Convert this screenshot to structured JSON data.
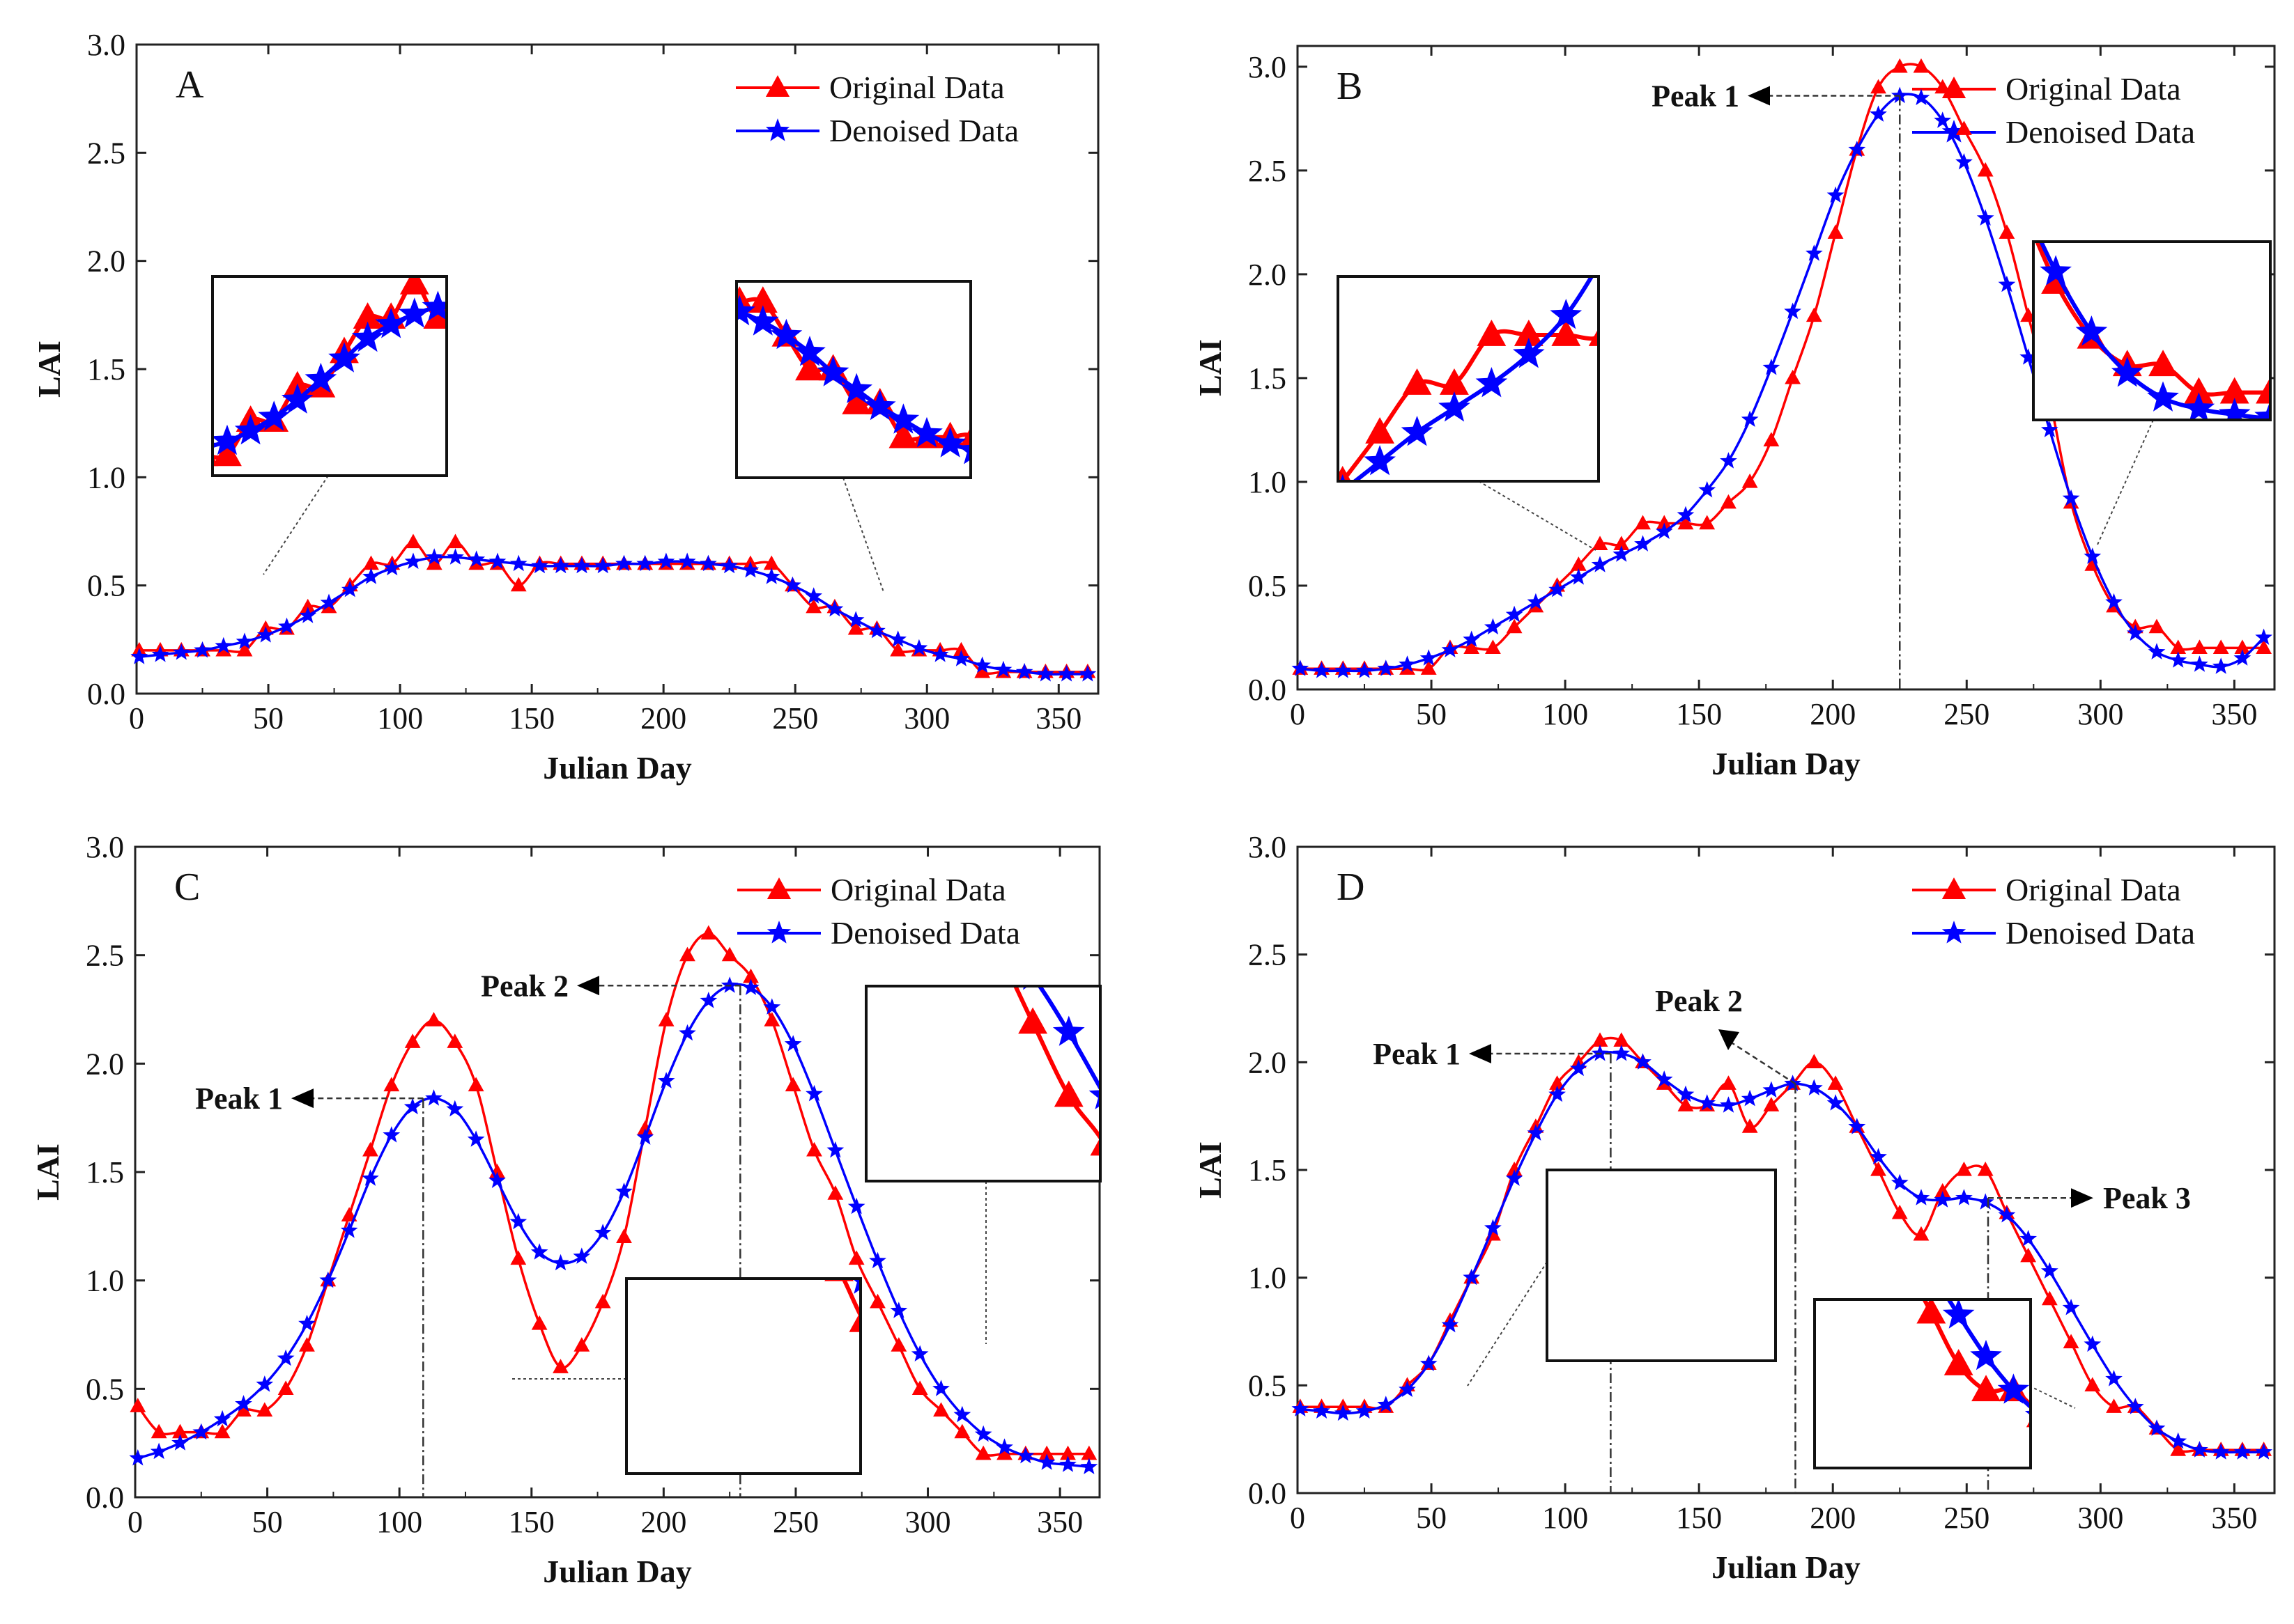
{
  "chart_data": [
    {
      "type": "line",
      "panel": "A",
      "xlabel": "Julian Day",
      "ylabel": "LAI",
      "xlim": [
        0,
        365
      ],
      "ylim": [
        0,
        3.0
      ],
      "xticks": [
        "0",
        "50",
        "100",
        "150",
        "200",
        "250",
        "300",
        "350"
      ],
      "yticks": [
        "0.0",
        "0.5",
        "1.0",
        "1.5",
        "2.0",
        "2.5",
        "3.0"
      ],
      "legend": [
        "Original Data",
        "Denoised Data"
      ],
      "x": [
        1,
        9,
        17,
        25,
        33,
        41,
        49,
        57,
        65,
        73,
        81,
        89,
        97,
        105,
        113,
        121,
        129,
        137,
        145,
        153,
        161,
        169,
        177,
        185,
        193,
        201,
        209,
        217,
        225,
        233,
        241,
        249,
        257,
        265,
        273,
        281,
        289,
        297,
        305,
        313,
        321,
        329,
        337,
        345,
        353,
        361
      ],
      "series": [
        {
          "name": "Original Data",
          "color": "#ff0000",
          "marker": "triangle",
          "values": [
            0.2,
            0.2,
            0.2,
            0.2,
            0.2,
            0.2,
            0.3,
            0.3,
            0.4,
            0.4,
            0.5,
            0.6,
            0.6,
            0.7,
            0.6,
            0.7,
            0.6,
            0.6,
            0.5,
            0.6,
            0.6,
            0.6,
            0.6,
            0.6,
            0.6,
            0.6,
            0.6,
            0.6,
            0.6,
            0.6,
            0.6,
            0.5,
            0.4,
            0.4,
            0.3,
            0.3,
            0.2,
            0.2,
            0.2,
            0.2,
            0.1,
            0.1,
            0.1,
            0.1,
            0.1,
            0.1
          ]
        },
        {
          "name": "Denoised Data",
          "color": "#0000ff",
          "marker": "star",
          "values": [
            0.17,
            0.18,
            0.19,
            0.2,
            0.22,
            0.24,
            0.27,
            0.31,
            0.36,
            0.42,
            0.48,
            0.54,
            0.58,
            0.61,
            0.63,
            0.63,
            0.62,
            0.61,
            0.6,
            0.59,
            0.59,
            0.59,
            0.59,
            0.6,
            0.6,
            0.61,
            0.61,
            0.6,
            0.59,
            0.57,
            0.54,
            0.5,
            0.45,
            0.39,
            0.34,
            0.29,
            0.25,
            0.21,
            0.18,
            0.16,
            0.13,
            0.11,
            0.1,
            0.09,
            0.09,
            0.09
          ]
        }
      ],
      "annotations": []
    },
    {
      "type": "line",
      "panel": "B",
      "xlabel": "Julian Day",
      "ylabel": "LAI",
      "xlim": [
        0,
        365
      ],
      "ylim": [
        0,
        3.1
      ],
      "xticks": [
        "0",
        "50",
        "100",
        "150",
        "200",
        "250",
        "300",
        "350"
      ],
      "yticks": [
        "0.0",
        "0.5",
        "1.0",
        "1.5",
        "2.0",
        "2.5",
        "3.0"
      ],
      "legend": [
        "Original Data",
        "Denoised Data"
      ],
      "x": [
        1,
        9,
        17,
        25,
        33,
        41,
        49,
        57,
        65,
        73,
        81,
        89,
        97,
        105,
        113,
        121,
        129,
        137,
        145,
        153,
        161,
        169,
        177,
        185,
        193,
        201,
        209,
        217,
        225,
        233,
        241,
        249,
        257,
        265,
        273,
        281,
        289,
        297,
        305,
        313,
        321,
        329,
        337,
        345,
        353,
        361
      ],
      "series": [
        {
          "name": "Original Data",
          "color": "#ff0000",
          "marker": "triangle",
          "values": [
            0.1,
            0.1,
            0.1,
            0.1,
            0.1,
            0.1,
            0.1,
            0.2,
            0.2,
            0.2,
            0.3,
            0.4,
            0.5,
            0.6,
            0.7,
            0.7,
            0.8,
            0.8,
            0.8,
            0.8,
            0.9,
            1.0,
            1.2,
            1.5,
            1.8,
            2.2,
            2.6,
            2.9,
            3.0,
            3.0,
            2.9,
            2.7,
            2.5,
            2.2,
            1.8,
            1.4,
            0.9,
            0.6,
            0.4,
            0.3,
            0.3,
            0.2,
            0.2,
            0.2,
            0.2,
            0.2
          ]
        },
        {
          "name": "Denoised Data",
          "color": "#0000ff",
          "marker": "star",
          "values": [
            0.1,
            0.09,
            0.09,
            0.09,
            0.1,
            0.12,
            0.15,
            0.19,
            0.24,
            0.3,
            0.36,
            0.42,
            0.48,
            0.54,
            0.6,
            0.65,
            0.7,
            0.76,
            0.84,
            0.96,
            1.1,
            1.3,
            1.55,
            1.82,
            2.1,
            2.38,
            2.6,
            2.77,
            2.86,
            2.85,
            2.74,
            2.54,
            2.27,
            1.95,
            1.6,
            1.25,
            0.92,
            0.64,
            0.42,
            0.27,
            0.18,
            0.14,
            0.12,
            0.11,
            0.15,
            0.25
          ]
        }
      ],
      "annotations": [
        {
          "text": "Peak 1",
          "x": 225,
          "y": 2.86
        }
      ]
    },
    {
      "type": "line",
      "panel": "C",
      "xlabel": "Julian Day",
      "ylabel": "LAI",
      "xlim": [
        0,
        365
      ],
      "ylim": [
        0,
        3.0
      ],
      "xticks": [
        "0",
        "50",
        "100",
        "150",
        "200",
        "250",
        "300",
        "350"
      ],
      "yticks": [
        "0.0",
        "0.5",
        "1.0",
        "1.5",
        "2.0",
        "2.5",
        "3.0"
      ],
      "legend": [
        "Original Data",
        "Denoised Data"
      ],
      "x": [
        1,
        9,
        17,
        25,
        33,
        41,
        49,
        57,
        65,
        73,
        81,
        89,
        97,
        105,
        113,
        121,
        129,
        137,
        145,
        153,
        161,
        169,
        177,
        185,
        193,
        201,
        209,
        217,
        225,
        233,
        241,
        249,
        257,
        265,
        273,
        281,
        289,
        297,
        305,
        313,
        321,
        329,
        337,
        345,
        353,
        361
      ],
      "series": [
        {
          "name": "Original Data",
          "color": "#ff0000",
          "marker": "triangle",
          "values": [
            0.42,
            0.3,
            0.3,
            0.3,
            0.3,
            0.4,
            0.4,
            0.5,
            0.7,
            1.0,
            1.3,
            1.6,
            1.9,
            2.1,
            2.2,
            2.1,
            1.9,
            1.5,
            1.1,
            0.8,
            0.6,
            0.7,
            0.9,
            1.2,
            1.7,
            2.2,
            2.5,
            2.6,
            2.5,
            2.4,
            2.2,
            1.9,
            1.6,
            1.4,
            1.1,
            0.9,
            0.7,
            0.5,
            0.4,
            0.3,
            0.2,
            0.2,
            0.2,
            0.2,
            0.2,
            0.2
          ]
        },
        {
          "name": "Denoised Data",
          "color": "#0000ff",
          "marker": "star",
          "values": [
            0.18,
            0.21,
            0.25,
            0.3,
            0.36,
            0.43,
            0.52,
            0.64,
            0.8,
            1.0,
            1.23,
            1.47,
            1.67,
            1.8,
            1.84,
            1.79,
            1.65,
            1.46,
            1.27,
            1.13,
            1.08,
            1.11,
            1.22,
            1.41,
            1.66,
            1.92,
            2.14,
            2.29,
            2.36,
            2.35,
            2.26,
            2.09,
            1.86,
            1.6,
            1.34,
            1.09,
            0.86,
            0.66,
            0.5,
            0.38,
            0.29,
            0.23,
            0.19,
            0.16,
            0.15,
            0.14
          ]
        }
      ],
      "annotations": [
        {
          "text": "Peak 1",
          "x": 109,
          "y": 1.84
        },
        {
          "text": "Peak 2",
          "x": 229,
          "y": 2.36
        }
      ]
    },
    {
      "type": "line",
      "panel": "D",
      "xlabel": "Julian Day",
      "ylabel": "LAI",
      "xlim": [
        0,
        365
      ],
      "ylim": [
        0,
        3.0
      ],
      "xticks": [
        "0",
        "50",
        "100",
        "150",
        "200",
        "250",
        "300",
        "350"
      ],
      "yticks": [
        "0.0",
        "0.5",
        "1.0",
        "1.5",
        "2.0",
        "2.5",
        "3.0"
      ],
      "legend": [
        "Original Data",
        "Denoised Data"
      ],
      "x": [
        1,
        9,
        17,
        25,
        33,
        41,
        49,
        57,
        65,
        73,
        81,
        89,
        97,
        105,
        113,
        121,
        129,
        137,
        145,
        153,
        161,
        169,
        177,
        185,
        193,
        201,
        209,
        217,
        225,
        233,
        241,
        249,
        257,
        265,
        273,
        281,
        289,
        297,
        305,
        313,
        321,
        329,
        337,
        345,
        353,
        361
      ],
      "series": [
        {
          "name": "Original Data",
          "color": "#ff0000",
          "marker": "triangle",
          "values": [
            0.4,
            0.4,
            0.4,
            0.4,
            0.4,
            0.5,
            0.6,
            0.8,
            1.0,
            1.2,
            1.5,
            1.7,
            1.9,
            2.0,
            2.1,
            2.1,
            2.0,
            1.9,
            1.8,
            1.8,
            1.9,
            1.7,
            1.8,
            1.9,
            2.0,
            1.9,
            1.7,
            1.5,
            1.3,
            1.2,
            1.4,
            1.5,
            1.5,
            1.3,
            1.1,
            0.9,
            0.7,
            0.5,
            0.4,
            0.4,
            0.3,
            0.2,
            0.2,
            0.2,
            0.2,
            0.2
          ]
        },
        {
          "name": "Denoised Data",
          "color": "#0000ff",
          "marker": "star",
          "values": [
            0.39,
            0.38,
            0.37,
            0.38,
            0.41,
            0.48,
            0.6,
            0.78,
            1.0,
            1.23,
            1.46,
            1.67,
            1.85,
            1.97,
            2.04,
            2.04,
            2.0,
            1.92,
            1.85,
            1.81,
            1.8,
            1.83,
            1.87,
            1.9,
            1.88,
            1.81,
            1.7,
            1.56,
            1.44,
            1.37,
            1.36,
            1.37,
            1.35,
            1.29,
            1.18,
            1.03,
            0.86,
            0.69,
            0.53,
            0.4,
            0.3,
            0.24,
            0.2,
            0.19,
            0.19,
            0.19
          ]
        }
      ],
      "annotations": [
        {
          "text": "Peak 1",
          "x": 117,
          "y": 2.04
        },
        {
          "text": "Peak 2",
          "x": 186,
          "y": 1.9
        },
        {
          "text": "Peak 3",
          "x": 258,
          "y": 1.37
        }
      ]
    }
  ]
}
